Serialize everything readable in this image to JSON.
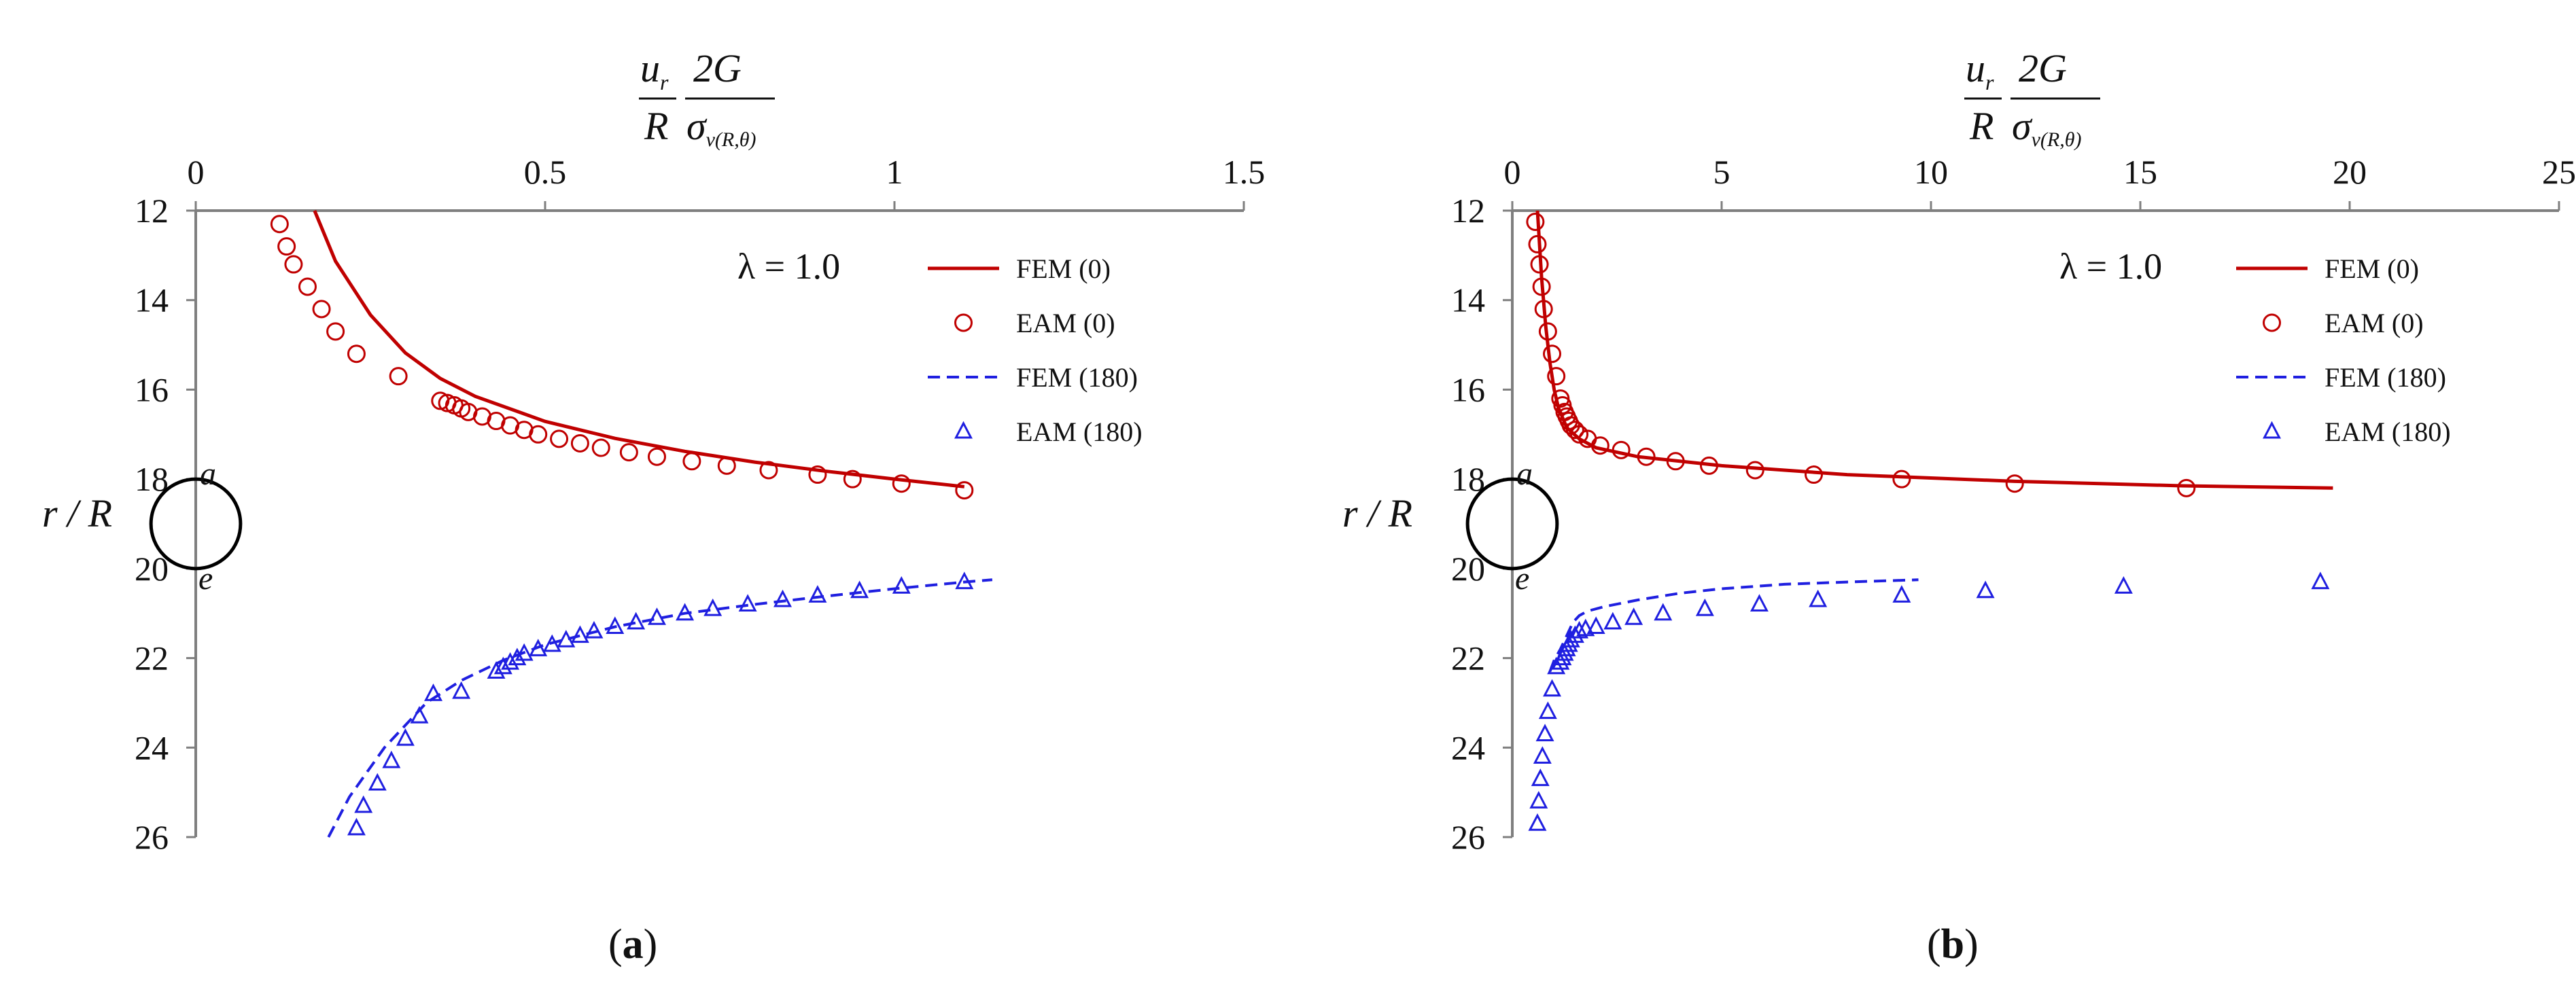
{
  "top_axis_title": {
    "frac1_num": "u",
    "frac1_num_sub": "r",
    "frac1_den": "R",
    "frac2_num": "2G",
    "frac2_den": "σ",
    "frac2_den_sub": "v(R,θ)"
  },
  "y_axis_title": "r / R",
  "colors": {
    "fem0": "#c00000",
    "eam0": "#c00000",
    "fem180": "#1f1fe0",
    "eam180": "#1f1fe0",
    "axis": "#7f7f7f"
  },
  "chart_data": [
    {
      "id": "a",
      "type": "scatter",
      "caption": {
        "open": "(",
        "label": "a",
        "close": ")"
      },
      "annotation": "λ = 1.0",
      "circle_labels": {
        "top": "a",
        "bottom": "e"
      },
      "xlim": [
        0,
        1.5
      ],
      "xticks": [
        "0",
        "0.5",
        "1",
        "1.5"
      ],
      "xtick_values": [
        0,
        0.5,
        1,
        1.5
      ],
      "ylim": [
        12,
        26
      ],
      "yticks": [
        "12",
        "14",
        "16",
        "18",
        "20",
        "22",
        "24",
        "26"
      ],
      "ytick_values": [
        12,
        14,
        16,
        18,
        20,
        22,
        24,
        26
      ],
      "ylabel": "r / R",
      "circle": {
        "center_x": 0,
        "center_y": 19,
        "radius_r": 1
      },
      "series": [
        {
          "name": "FEM (0)",
          "style": "line",
          "x": [
            0.17,
            0.2,
            0.25,
            0.3,
            0.35,
            0.4,
            0.5,
            0.6,
            0.7,
            0.8,
            0.9,
            1.0,
            1.1
          ],
          "y": [
            12.0,
            13.13,
            14.33,
            15.18,
            15.75,
            16.15,
            16.71,
            17.09,
            17.38,
            17.62,
            17.82,
            18.0,
            18.17
          ]
        },
        {
          "name": "EAM (0)",
          "style": "circle",
          "x": [
            0.12,
            0.13,
            0.14,
            0.16,
            0.18,
            0.2,
            0.23,
            0.29,
            0.35,
            0.36,
            0.37,
            0.38,
            0.39,
            0.41,
            0.43,
            0.45,
            0.47,
            0.49,
            0.52,
            0.55,
            0.58,
            0.62,
            0.66,
            0.71,
            0.76,
            0.82,
            0.89,
            0.94,
            1.01,
            1.1
          ],
          "y": [
            12.3,
            12.8,
            13.2,
            13.7,
            14.2,
            14.7,
            15.2,
            15.7,
            16.25,
            16.3,
            16.35,
            16.42,
            16.5,
            16.6,
            16.7,
            16.8,
            16.9,
            17.0,
            17.1,
            17.2,
            17.3,
            17.4,
            17.5,
            17.6,
            17.7,
            17.8,
            17.9,
            18.0,
            18.1,
            18.25
          ]
        },
        {
          "name": "FEM (180)",
          "style": "dashed",
          "x": [
            0.19,
            0.22,
            0.27,
            0.33,
            0.38,
            0.44,
            0.5,
            0.6,
            0.7,
            0.8,
            0.9,
            1.0,
            1.1,
            1.14
          ],
          "y": [
            26.0,
            25.1,
            24.0,
            23.0,
            22.5,
            22.05,
            21.7,
            21.3,
            21.0,
            20.8,
            20.62,
            20.45,
            20.3,
            20.25
          ]
        },
        {
          "name": "EAM (180)",
          "style": "triangle",
          "x": [
            0.23,
            0.24,
            0.26,
            0.28,
            0.3,
            0.32,
            0.34,
            0.38,
            0.43,
            0.44,
            0.45,
            0.46,
            0.47,
            0.49,
            0.51,
            0.53,
            0.55,
            0.57,
            0.6,
            0.63,
            0.66,
            0.7,
            0.74,
            0.79,
            0.84,
            0.89,
            0.95,
            1.01,
            1.1
          ],
          "y": [
            25.8,
            25.3,
            24.8,
            24.3,
            23.8,
            23.3,
            22.8,
            22.75,
            22.3,
            22.2,
            22.1,
            22.0,
            21.9,
            21.8,
            21.7,
            21.6,
            21.5,
            21.4,
            21.3,
            21.2,
            21.1,
            21.0,
            20.9,
            20.8,
            20.7,
            20.6,
            20.5,
            20.4,
            20.3
          ]
        }
      ]
    },
    {
      "id": "b",
      "type": "scatter",
      "caption": {
        "open": "(",
        "label": "b",
        "close": ")"
      },
      "annotation": "λ = 1.0",
      "circle_labels": {
        "top": "a",
        "bottom": "e"
      },
      "xlim": [
        0,
        25
      ],
      "xticks": [
        "0",
        "5",
        "10",
        "15",
        "20",
        "25"
      ],
      "xtick_values": [
        0,
        5,
        10,
        15,
        20,
        25
      ],
      "ylim": [
        12,
        26
      ],
      "yticks": [
        "12",
        "14",
        "16",
        "18",
        "20",
        "22",
        "24",
        "26"
      ],
      "ytick_values": [
        12,
        14,
        16,
        18,
        20,
        22,
        24,
        26
      ],
      "ylabel": "r / R",
      "circle": {
        "center_x": 0,
        "center_y": 19,
        "radius_r": 1
      },
      "series": [
        {
          "name": "FEM (0)",
          "style": "line",
          "x": [
            0.6,
            0.7,
            0.8,
            0.9,
            1.0,
            1.1,
            1.3,
            1.6,
            2.0,
            3.0,
            5.0,
            8.0,
            12.0,
            16.0,
            19.6
          ],
          "y": [
            12.0,
            13.5,
            14.6,
            15.4,
            16.0,
            16.4,
            16.85,
            17.1,
            17.3,
            17.5,
            17.7,
            17.9,
            18.05,
            18.15,
            18.2
          ]
        },
        {
          "name": "EAM (0)",
          "style": "circle",
          "x": [
            0.55,
            0.6,
            0.65,
            0.7,
            0.75,
            0.85,
            0.95,
            1.05,
            1.15,
            1.2,
            1.25,
            1.3,
            1.35,
            1.4,
            1.5,
            1.6,
            1.8,
            2.1,
            2.6,
            3.2,
            3.9,
            4.7,
            5.8,
            7.2,
            9.3,
            12.0,
            16.1
          ],
          "y": [
            12.25,
            12.75,
            13.2,
            13.7,
            14.2,
            14.7,
            15.2,
            15.7,
            16.2,
            16.35,
            16.5,
            16.6,
            16.7,
            16.8,
            16.9,
            17.0,
            17.1,
            17.25,
            17.35,
            17.5,
            17.6,
            17.7,
            17.8,
            17.9,
            18.0,
            18.1,
            18.2
          ]
        },
        {
          "name": "FEM (180)",
          "style": "dashed",
          "x": [
            0.9,
            1.0,
            1.15,
            1.3,
            1.45,
            1.6,
            1.8,
            2.2,
            3.0,
            4.0,
            5.0,
            6.5,
            8.0,
            9.7
          ],
          "y": [
            22.3,
            22.05,
            21.8,
            21.5,
            21.2,
            21.05,
            20.95,
            20.85,
            20.7,
            20.55,
            20.45,
            20.35,
            20.3,
            20.25
          ]
        },
        {
          "name": "EAM (180)",
          "style": "triangle",
          "x": [
            0.6,
            0.63,
            0.67,
            0.72,
            0.78,
            0.85,
            0.95,
            1.05,
            1.15,
            1.2,
            1.25,
            1.3,
            1.35,
            1.4,
            1.5,
            1.6,
            1.75,
            2.0,
            2.4,
            2.9,
            3.6,
            4.6,
            5.9,
            7.3,
            9.3,
            11.3,
            14.6,
            19.3
          ],
          "y": [
            25.7,
            25.2,
            24.7,
            24.2,
            23.7,
            23.2,
            22.7,
            22.2,
            22.1,
            22.0,
            21.9,
            21.8,
            21.7,
            21.6,
            21.5,
            21.4,
            21.35,
            21.3,
            21.2,
            21.1,
            21.0,
            20.9,
            20.8,
            20.7,
            20.6,
            20.5,
            20.4,
            20.3
          ]
        }
      ]
    }
  ]
}
